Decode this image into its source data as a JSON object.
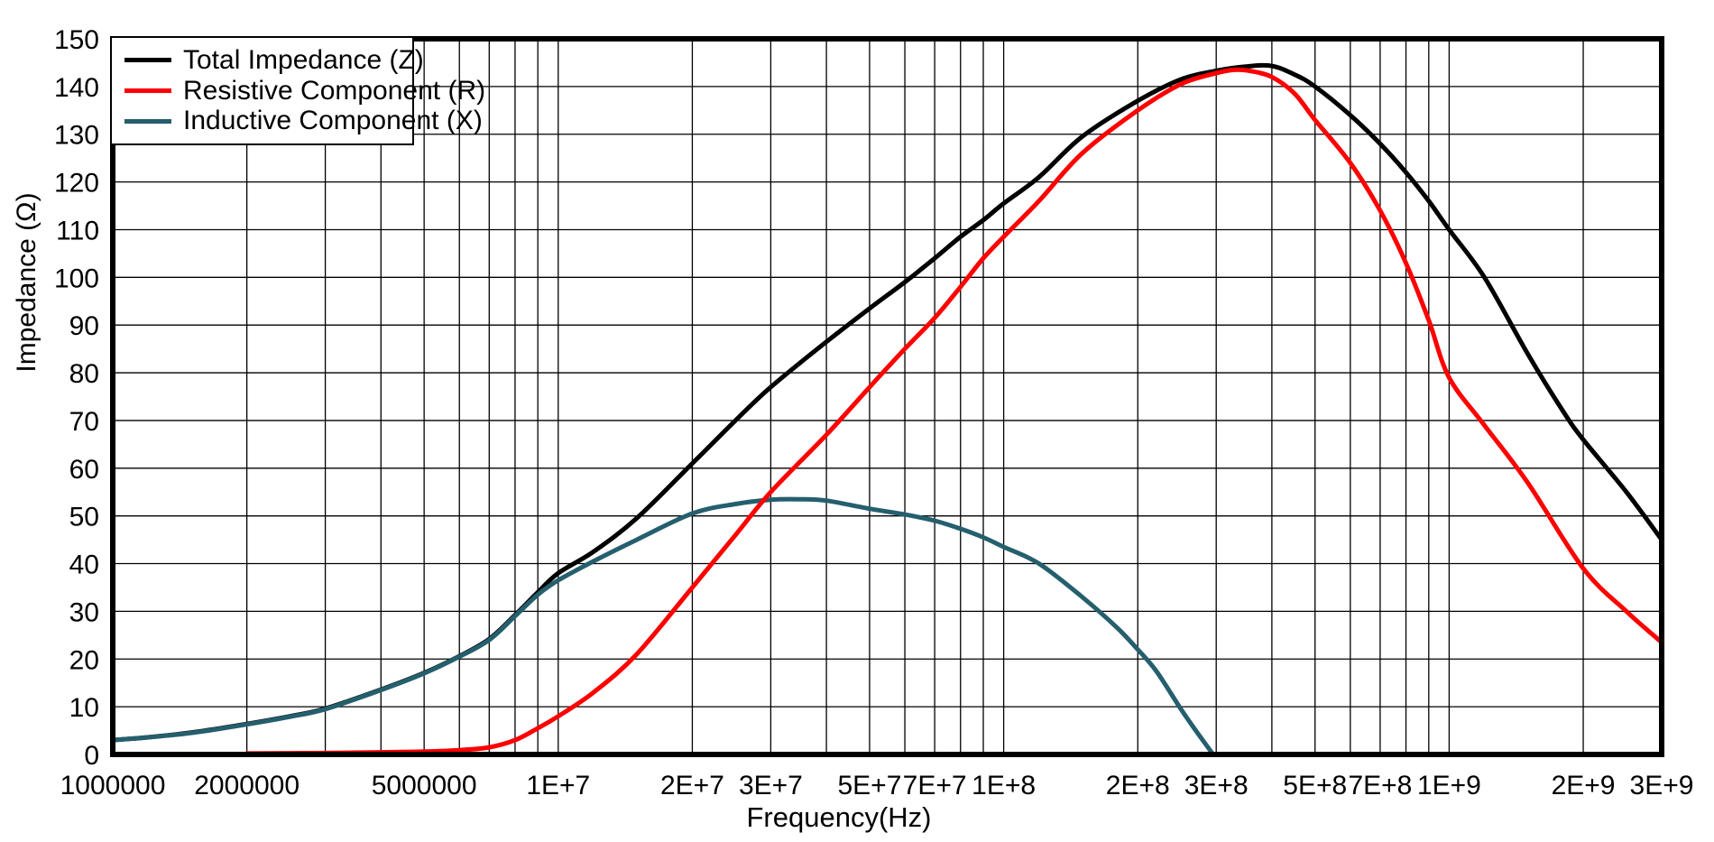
{
  "chart_data": {
    "type": "line",
    "title": "",
    "xlabel": "Frequency(Hz)",
    "ylabel": "Impedance (Ω)",
    "x_scale": "log",
    "xlim": [
      1000000,
      3000000000
    ],
    "ylim": [
      0,
      150
    ],
    "y_tick_step": 10,
    "grid": true,
    "legend_position": "top-left",
    "x_tick_labels": [
      {
        "value": 1000000,
        "label": "1000000"
      },
      {
        "value": 2000000,
        "label": "2000000"
      },
      {
        "value": 5000000,
        "label": "5000000"
      },
      {
        "value": 10000000,
        "label": "1E+7"
      },
      {
        "value": 20000000,
        "label": "2E+7"
      },
      {
        "value": 30000000,
        "label": "3E+7"
      },
      {
        "value": 50000000,
        "label": "5E+7"
      },
      {
        "value": 70000000,
        "label": "7E+7"
      },
      {
        "value": 100000000,
        "label": "1E+8"
      },
      {
        "value": 200000000,
        "label": "2E+8"
      },
      {
        "value": 300000000,
        "label": "3E+8"
      },
      {
        "value": 500000000,
        "label": "5E+8"
      },
      {
        "value": 700000000,
        "label": "7E+8"
      },
      {
        "value": 1000000000,
        "label": "1E+9"
      },
      {
        "value": 2000000000,
        "label": "2E+9"
      },
      {
        "value": 3000000000,
        "label": "3E+9"
      }
    ],
    "series": [
      {
        "name": "Total Impedance (Z)",
        "color": "#000000",
        "points": [
          [
            1000000,
            3
          ],
          [
            1200000,
            3.6
          ],
          [
            1500000,
            4.6
          ],
          [
            2000000,
            6.4
          ],
          [
            2500000,
            8
          ],
          [
            3000000,
            9.6
          ],
          [
            4000000,
            13.6
          ],
          [
            5000000,
            17.1
          ],
          [
            6000000,
            20.6
          ],
          [
            7000000,
            24.2
          ],
          [
            8000000,
            29.2
          ],
          [
            9000000,
            34
          ],
          [
            10000000,
            38
          ],
          [
            12000000,
            42.5
          ],
          [
            15000000,
            49.5
          ],
          [
            20000000,
            61
          ],
          [
            25000000,
            70
          ],
          [
            30000000,
            77
          ],
          [
            40000000,
            86.5
          ],
          [
            50000000,
            93.5
          ],
          [
            60000000,
            99
          ],
          [
            70000000,
            104
          ],
          [
            80000000,
            108.5
          ],
          [
            90000000,
            112
          ],
          [
            100000000,
            115.5
          ],
          [
            120000000,
            121
          ],
          [
            150000000,
            129.5
          ],
          [
            200000000,
            137
          ],
          [
            250000000,
            141.5
          ],
          [
            300000000,
            143.3
          ],
          [
            350000000,
            144.2
          ],
          [
            400000000,
            144.3
          ],
          [
            450000000,
            142.5
          ],
          [
            500000000,
            140
          ],
          [
            600000000,
            134
          ],
          [
            700000000,
            128
          ],
          [
            800000000,
            122
          ],
          [
            900000000,
            116
          ],
          [
            1000000000,
            110
          ],
          [
            1200000000,
            100
          ],
          [
            1500000000,
            84
          ],
          [
            1800000000,
            72
          ],
          [
            2000000000,
            66
          ],
          [
            2500000000,
            55
          ],
          [
            3000000000,
            45
          ]
        ]
      },
      {
        "name": "Resistive Component (R)",
        "color": "#ff0000",
        "points": [
          [
            2000000,
            0.2
          ],
          [
            3000000,
            0.3
          ],
          [
            4000000,
            0.45
          ],
          [
            5000000,
            0.6
          ],
          [
            6000000,
            0.9
          ],
          [
            7000000,
            1.5
          ],
          [
            8000000,
            3
          ],
          [
            9000000,
            5.5
          ],
          [
            10000000,
            8
          ],
          [
            12000000,
            13
          ],
          [
            15000000,
            21
          ],
          [
            20000000,
            35
          ],
          [
            25000000,
            46
          ],
          [
            30000000,
            55
          ],
          [
            40000000,
            67
          ],
          [
            50000000,
            77
          ],
          [
            60000000,
            85
          ],
          [
            70000000,
            91.5
          ],
          [
            80000000,
            98
          ],
          [
            90000000,
            104
          ],
          [
            100000000,
            108.5
          ],
          [
            120000000,
            116
          ],
          [
            150000000,
            126
          ],
          [
            200000000,
            135
          ],
          [
            250000000,
            140.5
          ],
          [
            300000000,
            142.8
          ],
          [
            330000000,
            143.5
          ],
          [
            360000000,
            143.2
          ],
          [
            400000000,
            142
          ],
          [
            450000000,
            138.5
          ],
          [
            500000000,
            133
          ],
          [
            600000000,
            124
          ],
          [
            700000000,
            114
          ],
          [
            800000000,
            103
          ],
          [
            900000000,
            91
          ],
          [
            1000000000,
            79
          ],
          [
            1200000000,
            69
          ],
          [
            1500000000,
            57
          ],
          [
            2000000000,
            39
          ],
          [
            2500000000,
            30
          ],
          [
            3000000000,
            23.5
          ]
        ]
      },
      {
        "name": "Inductive Component (X)",
        "color": "#255f6e",
        "points": [
          [
            1000000,
            3
          ],
          [
            1200000,
            3.6
          ],
          [
            1500000,
            4.5
          ],
          [
            2000000,
            6.3
          ],
          [
            2500000,
            7.9
          ],
          [
            3000000,
            9.5
          ],
          [
            4000000,
            13.5
          ],
          [
            5000000,
            17
          ],
          [
            6000000,
            20.5
          ],
          [
            7000000,
            24
          ],
          [
            8000000,
            29
          ],
          [
            9000000,
            33.5
          ],
          [
            10000000,
            36.5
          ],
          [
            12000000,
            40.5
          ],
          [
            15000000,
            45
          ],
          [
            20000000,
            50.5
          ],
          [
            25000000,
            52.5
          ],
          [
            30000000,
            53.4
          ],
          [
            35000000,
            53.5
          ],
          [
            40000000,
            53.2
          ],
          [
            50000000,
            51.5
          ],
          [
            60000000,
            50.3
          ],
          [
            70000000,
            49
          ],
          [
            80000000,
            47.3
          ],
          [
            90000000,
            45.5
          ],
          [
            100000000,
            43.5
          ],
          [
            120000000,
            40
          ],
          [
            150000000,
            33
          ],
          [
            180000000,
            26.5
          ],
          [
            200000000,
            22
          ],
          [
            220000000,
            17.5
          ],
          [
            250000000,
            9.5
          ],
          [
            270000000,
            5
          ],
          [
            290000000,
            1
          ],
          [
            295000000,
            0
          ]
        ]
      }
    ]
  }
}
